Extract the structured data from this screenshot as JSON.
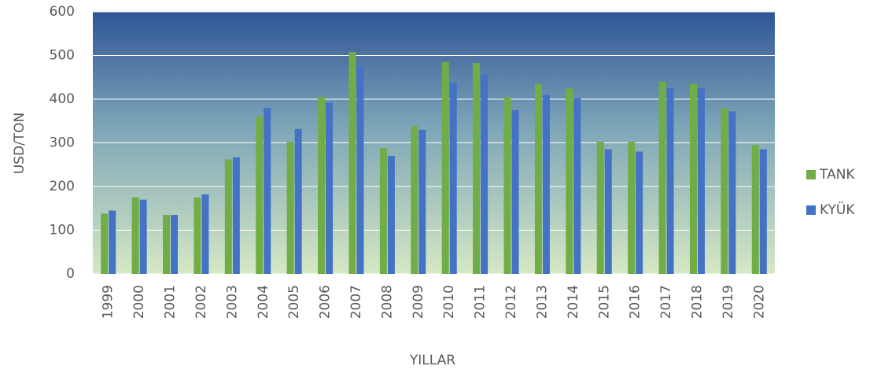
{
  "chart_data": {
    "type": "bar",
    "x_label": "YILLAR",
    "y_label": "USD/TON",
    "categories": [
      "1999",
      "2000",
      "2001",
      "2002",
      "2003",
      "2004",
      "2005",
      "2006",
      "2007",
      "2008",
      "2009",
      "2010",
      "2011",
      "2012",
      "2013",
      "2014",
      "2015",
      "2016",
      "2017",
      "2018",
      "2019",
      "2020"
    ],
    "series": [
      {
        "name": "TANK",
        "color": "#70ad47",
        "values": [
          138,
          175,
          135,
          175,
          262,
          360,
          302,
          405,
          508,
          288,
          338,
          485,
          483,
          405,
          435,
          425,
          302,
          302,
          440,
          435,
          380,
          295
        ]
      },
      {
        "name": "KYÜK",
        "color": "#4472c4",
        "values": [
          145,
          170,
          135,
          182,
          267,
          380,
          332,
          392,
          475,
          270,
          330,
          438,
          457,
          375,
          410,
          402,
          285,
          280,
          425,
          425,
          372,
          285
        ]
      }
    ],
    "ylim": [
      0,
      600
    ],
    "yticks": [
      0,
      100,
      200,
      300,
      400,
      500,
      600
    ],
    "grid": true,
    "legend": "right"
  }
}
